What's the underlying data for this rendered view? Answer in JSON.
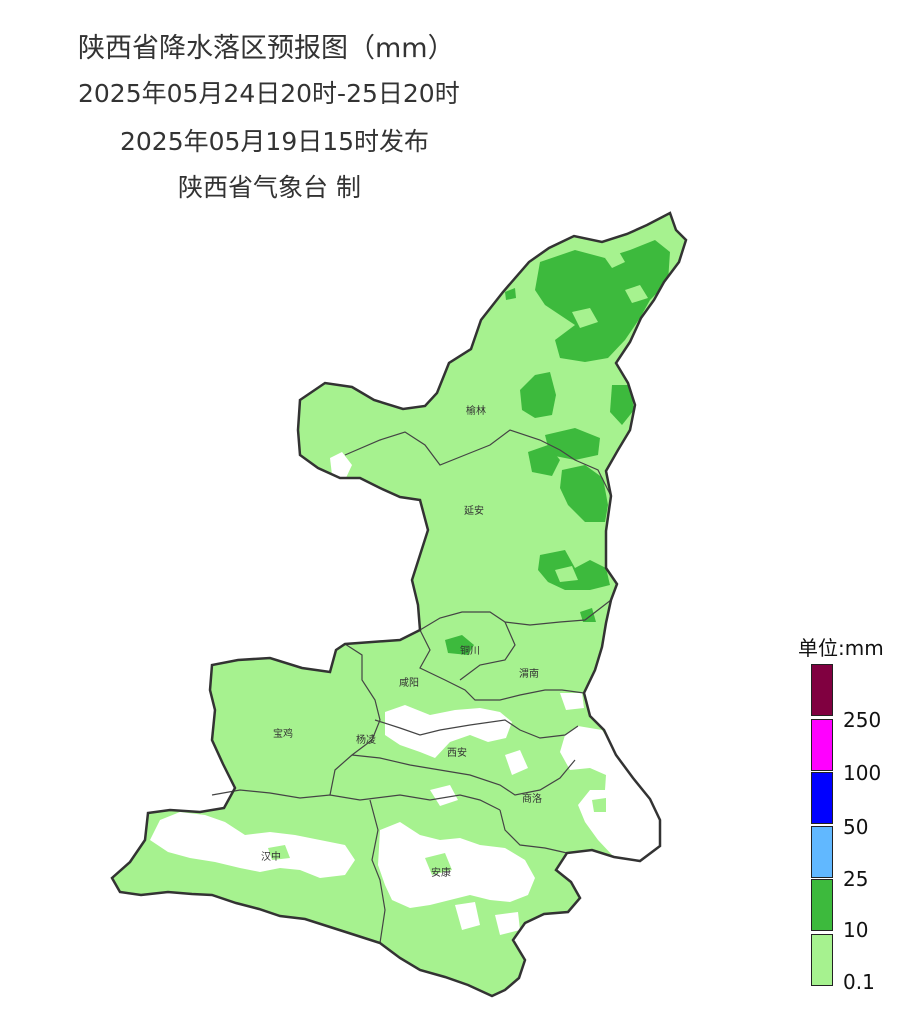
{
  "title": {
    "line1": "陕西省降水落区预报图（mm）",
    "line2": "2025年05月24日20时-25日20时",
    "line3": "2025年05月19日15时发布",
    "line4": "陕西省气象台 制"
  },
  "cities": [
    "榆林",
    "延安",
    "铜川",
    "咸阳",
    "渭南",
    "宝鸡",
    "杨凌",
    "西安",
    "商洛",
    "汉中",
    "安康"
  ],
  "legend": {
    "unit": "单位:mm",
    "levels": [
      "250",
      "100",
      "50",
      "25",
      "10",
      "0.1"
    ],
    "colors": [
      "#800040",
      "#ff00ff",
      "#0000ff",
      "#61b8ff",
      "#3dba3d",
      "#a6f28f"
    ]
  },
  "rain_classes": {
    "light": {
      "label": "0.1–10",
      "color": "#a6f28f"
    },
    "moderate": {
      "label": "10–25",
      "color": "#3dba3d"
    }
  }
}
